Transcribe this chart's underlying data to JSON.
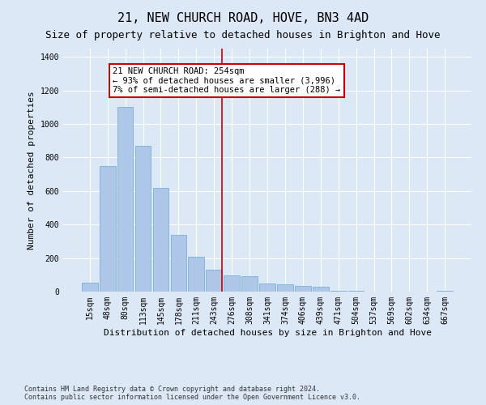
{
  "title": "21, NEW CHURCH ROAD, HOVE, BN3 4AD",
  "subtitle": "Size of property relative to detached houses in Brighton and Hove",
  "xlabel": "Distribution of detached houses by size in Brighton and Hove",
  "ylabel": "Number of detached properties",
  "categories": [
    "15sqm",
    "48sqm",
    "80sqm",
    "113sqm",
    "145sqm",
    "178sqm",
    "211sqm",
    "243sqm",
    "276sqm",
    "308sqm",
    "341sqm",
    "374sqm",
    "406sqm",
    "439sqm",
    "471sqm",
    "504sqm",
    "537sqm",
    "569sqm",
    "602sqm",
    "634sqm",
    "667sqm"
  ],
  "values": [
    55,
    750,
    1100,
    870,
    620,
    340,
    210,
    130,
    95,
    90,
    50,
    45,
    35,
    30,
    5,
    5,
    0,
    0,
    0,
    0,
    5
  ],
  "bar_color": "#aec6e8",
  "bar_edgecolor": "#6aaad4",
  "vline_x_index": 7,
  "vline_color": "#cc0000",
  "annotation_text": "21 NEW CHURCH ROAD: 254sqm\n← 93% of detached houses are smaller (3,996)\n7% of semi-detached houses are larger (288) →",
  "annotation_box_color": "#ffffff",
  "annotation_box_edgecolor": "#cc0000",
  "ylim": [
    0,
    1450
  ],
  "yticks": [
    0,
    200,
    400,
    600,
    800,
    1000,
    1200,
    1400
  ],
  "footer": "Contains HM Land Registry data © Crown copyright and database right 2024.\nContains public sector information licensed under the Open Government Licence v3.0.",
  "bg_color": "#dce8f5",
  "plot_bg_color": "#dce8f5",
  "title_fontsize": 11,
  "subtitle_fontsize": 9,
  "tick_fontsize": 7,
  "label_fontsize": 8,
  "footer_fontsize": 6,
  "annotation_fontsize": 7.5
}
